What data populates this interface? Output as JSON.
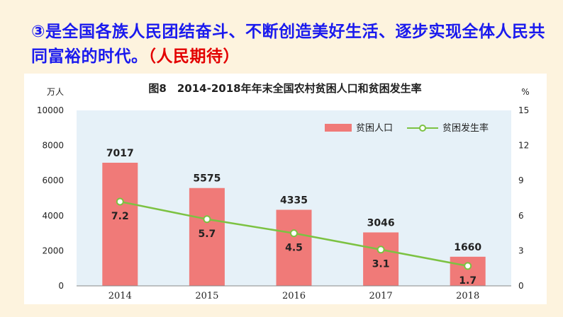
{
  "headline": {
    "text": "③是全国各族人民团结奋斗、不断创造美好生活、逐步实现全体人民共同富裕的时代。",
    "tag": "（人民期待）"
  },
  "colors": {
    "text_blue": "#1a1aee",
    "tag_red": "#e30000",
    "bar": "#f07a78",
    "line": "#7cc242",
    "plot_bg": "#e6f1f8"
  },
  "chart_data": {
    "type": "bar+line",
    "title": "图8　2014-2018年年末全国农村贫困人口和贫困发生率",
    "categories": [
      "2014",
      "2015",
      "2016",
      "2017",
      "2018"
    ],
    "series": [
      {
        "name": "贫困人口",
        "type": "bar",
        "axis": "left",
        "values": [
          7017,
          5575,
          4335,
          3046,
          1660
        ]
      },
      {
        "name": "贫困发生率",
        "type": "line",
        "axis": "right",
        "values": [
          7.2,
          5.7,
          4.5,
          3.1,
          1.7
        ]
      }
    ],
    "left_axis": {
      "unit": "万人",
      "min": 0,
      "max": 10000,
      "ticks": [
        "0",
        "2000",
        "4000",
        "6000",
        "8000",
        "10000"
      ]
    },
    "right_axis": {
      "unit": "%",
      "min": 0,
      "max": 15,
      "ticks": [
        "0",
        "3",
        "6",
        "9",
        "12",
        "15"
      ]
    },
    "legend_position": "top-right"
  }
}
